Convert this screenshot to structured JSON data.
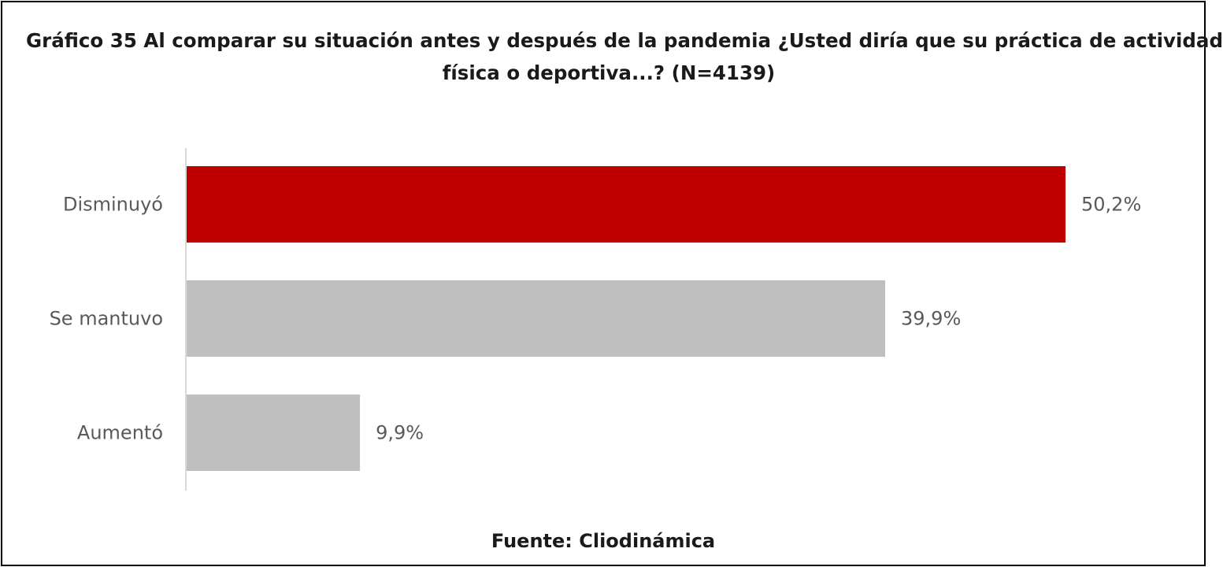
{
  "chart_data": {
    "type": "bar",
    "orientation": "horizontal",
    "title_line1": "Gráfico 35 Al comparar su situación antes y después de la pandemia ¿Usted diría que su práctica de actividad",
    "title_line2": "física o deportiva...? (N=4139)",
    "categories": [
      "Disminuyó",
      "Se mantuvo",
      "Aumentó"
    ],
    "values": [
      50.2,
      39.9,
      9.9
    ],
    "value_labels": [
      "50,2%",
      "39,9%",
      "9,9%"
    ],
    "colors": [
      "#c00000",
      "#bfbfbf",
      "#bfbfbf"
    ],
    "xlim": [
      0,
      50.2
    ],
    "grid": false,
    "legend": "none",
    "source": "Fuente: Cliodinámica"
  }
}
